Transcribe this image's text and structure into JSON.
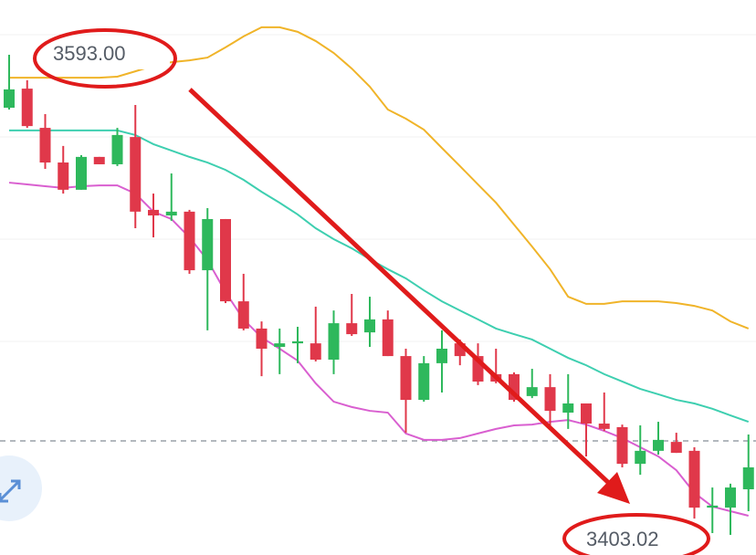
{
  "chart_data": {
    "type": "candlestick",
    "annotations": [
      "3593.00",
      "3403.02"
    ],
    "ylim": [
      3396.6,
      3614.5
    ],
    "up_color": "#2eb85c",
    "down_color": "#e0384a",
    "categories": [
      null,
      null,
      null,
      null,
      null,
      null,
      null,
      null,
      null,
      null,
      null,
      null,
      null,
      null,
      null,
      null,
      null,
      null,
      null,
      null,
      null,
      null,
      null,
      null,
      null,
      null,
      null,
      null,
      null,
      null,
      null,
      null,
      null,
      null,
      null,
      null,
      null,
      null,
      null,
      null,
      null,
      null
    ],
    "open": [
      3572.2,
      3579.7,
      3564.3,
      3550.7,
      3540.0,
      3552.9,
      3550.0,
      3560.7,
      3532.1,
      3529.9,
      3531.4,
      3508.4,
      3528.5,
      3496.2,
      3485.5,
      3478.3,
      3479.7,
      3479.7,
      3473.3,
      3487.6,
      3484.0,
      3489.1,
      3474.7,
      3457.5,
      3471.9,
      3479.7,
      3474.7,
      3467.6,
      3467.6,
      3459.0,
      3462.5,
      3452.5,
      3456.1,
      3448.2,
      3446.8,
      3432.4,
      3437.5,
      3441.0,
      3437.5,
      3415.2,
      3415.2,
      3422.4
    ],
    "high": [
      3593.0,
      3583.0,
      3569.7,
      3557.2,
      3553.6,
      3552.9,
      3564.3,
      3573.3,
      3538.5,
      3546.4,
      3532.1,
      3532.8,
      3528.5,
      3507.0,
      3488.3,
      3485.5,
      3486.2,
      3494.1,
      3492.6,
      3499.1,
      3498.0,
      3492.6,
      3477.6,
      3474.7,
      3484.8,
      3481.2,
      3479.7,
      3477.6,
      3468.3,
      3469.7,
      3467.6,
      3467.6,
      3456.1,
      3460.4,
      3447.8,
      3447.5,
      3448.9,
      3444.6,
      3438.9,
      3423.1,
      3424.6,
      3443.9
    ],
    "low": [
      3571.5,
      3564.3,
      3548.2,
      3538.5,
      3540.0,
      3550.0,
      3549.3,
      3524.9,
      3521.3,
      3527.8,
      3507.0,
      3484.8,
      3495.5,
      3484.8,
      3466.8,
      3467.6,
      3471.9,
      3472.6,
      3467.6,
      3482.6,
      3478.3,
      3474.7,
      3444.6,
      3456.8,
      3460.4,
      3471.1,
      3463.3,
      3464.0,
      3456.8,
      3458.2,
      3446.1,
      3446.1,
      3435.3,
      3445.3,
      3431.0,
      3428.1,
      3436.0,
      3436.7,
      3410.9,
      3405.2,
      3404.5,
      3413.8
    ],
    "close": [
      3579.4,
      3565.0,
      3550.7,
      3540.0,
      3552.9,
      3550.0,
      3561.5,
      3531.4,
      3529.9,
      3531.4,
      3508.4,
      3528.5,
      3496.2,
      3485.5,
      3477.6,
      3479.7,
      3480.5,
      3473.3,
      3487.6,
      3483.3,
      3489.1,
      3474.7,
      3457.5,
      3471.9,
      3477.6,
      3474.7,
      3464.7,
      3464.7,
      3457.5,
      3462.5,
      3453.2,
      3456.1,
      3448.2,
      3446.1,
      3432.4,
      3437.5,
      3441.8,
      3436.7,
      3415.2,
      3416.0,
      3423.1,
      3431.0
    ],
    "lines": [
      {
        "color": "#f0b429",
        "values": [
          3584.0,
          3584.0,
          3584.0,
          3584.0,
          3584.0,
          3584.0,
          3584.4,
          3586.5,
          3588.7,
          3590.1,
          3590.8,
          3591.9,
          3595.9,
          3600.2,
          3603.8,
          3603.8,
          3602.0,
          3598.4,
          3593.7,
          3587.6,
          3580.5,
          3571.5,
          3567.9,
          3563.6,
          3556.4,
          3549.3,
          3542.1,
          3534.9,
          3526.3,
          3517.7,
          3508.8,
          3498.0,
          3495.2,
          3495.2,
          3496.2,
          3496.2,
          3496.2,
          3495.5,
          3494.4,
          3492.6,
          3488.3,
          3485.5
        ]
      },
      {
        "color": "#3ecfb0",
        "values": [
          3563.3,
          3563.3,
          3563.3,
          3563.3,
          3563.3,
          3563.3,
          3563.3,
          3561.5,
          3557.9,
          3555.4,
          3552.9,
          3550.7,
          3547.8,
          3543.9,
          3539.2,
          3534.9,
          3530.3,
          3524.9,
          3520.6,
          3517.0,
          3512.7,
          3508.8,
          3505.2,
          3500.5,
          3496.2,
          3492.6,
          3489.1,
          3485.5,
          3483.3,
          3481.2,
          3477.6,
          3474.0,
          3471.1,
          3467.6,
          3464.7,
          3461.8,
          3459.7,
          3457.5,
          3456.1,
          3454.0,
          3451.4,
          3448.9
        ]
      },
      {
        "color": "#d95fd0",
        "values": [
          3542.8,
          3542.1,
          3541.4,
          3540.7,
          3541.4,
          3541.7,
          3541.7,
          3538.5,
          3531.4,
          3528.5,
          3521.3,
          3512.4,
          3499.8,
          3489.1,
          3482.0,
          3477.6,
          3472.9,
          3464.0,
          3456.8,
          3454.7,
          3453.2,
          3452.5,
          3444.3,
          3441.8,
          3441.8,
          3442.5,
          3444.3,
          3446.1,
          3447.5,
          3447.8,
          3448.9,
          3449.6,
          3447.8,
          3445.3,
          3442.5,
          3438.9,
          3435.3,
          3429.9,
          3421.0,
          3415.6,
          3413.8,
          3412.0
        ]
      }
    ],
    "reference_line": 3441.4
  }
}
